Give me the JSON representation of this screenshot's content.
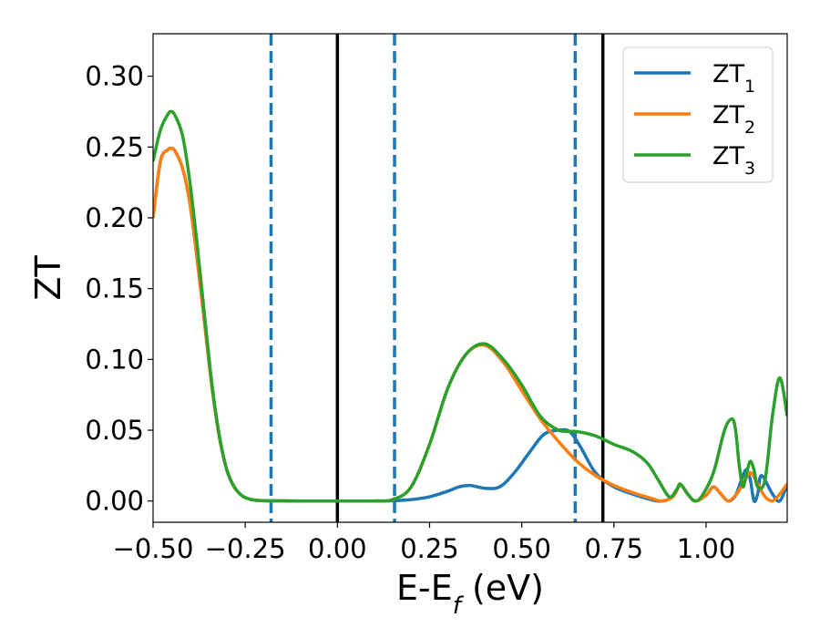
{
  "chart_data": {
    "type": "line",
    "xlabel": {
      "main": "E-E",
      "sub": "f",
      "unit": " (eV)"
    },
    "ylabel": "ZT",
    "xlim": [
      -0.5,
      1.22
    ],
    "ylim": [
      -0.015,
      0.33
    ],
    "xticks": [
      -0.5,
      -0.25,
      0.0,
      0.25,
      0.5,
      0.75,
      1.0
    ],
    "xtick_labels": [
      "−0.50",
      "−0.25",
      "0.00",
      "0.25",
      "0.50",
      "0.75",
      "1.00"
    ],
    "yticks": [
      0.0,
      0.05,
      0.1,
      0.15,
      0.2,
      0.25,
      0.3
    ],
    "ytick_labels": [
      "0.00",
      "0.05",
      "0.10",
      "0.15",
      "0.20",
      "0.25",
      "0.30"
    ],
    "vlines": [
      {
        "x": -0.18,
        "style": "dashed",
        "color": "#1f77b4"
      },
      {
        "x": 0.0,
        "style": "solid",
        "color": "#000000"
      },
      {
        "x": 0.155,
        "style": "dashed",
        "color": "#1f77b4"
      },
      {
        "x": 0.645,
        "style": "dashed",
        "color": "#1f77b4"
      },
      {
        "x": 0.72,
        "style": "solid",
        "color": "#000000"
      }
    ],
    "legend_position": "top-right",
    "series": [
      {
        "name": "ZT",
        "name_sub": "1",
        "color": "#1f77b4",
        "x": [
          -0.5,
          -0.48,
          -0.46,
          -0.45,
          -0.44,
          -0.42,
          -0.4,
          -0.38,
          -0.36,
          -0.34,
          -0.32,
          -0.3,
          -0.28,
          -0.26,
          -0.24,
          -0.22,
          -0.2,
          -0.15,
          -0.1,
          0.0,
          0.1,
          0.15,
          0.2,
          0.25,
          0.3,
          0.33,
          0.36,
          0.4,
          0.44,
          0.48,
          0.52,
          0.56,
          0.6,
          0.63,
          0.66,
          0.7,
          0.75,
          0.8,
          0.85,
          0.88,
          0.91,
          0.93,
          0.95,
          0.97,
          1.0,
          1.02,
          1.04,
          1.06,
          1.08,
          1.1,
          1.11,
          1.12,
          1.13,
          1.14,
          1.15,
          1.18,
          1.2,
          1.22
        ],
        "y": [
          0.2,
          0.24,
          0.248,
          0.249,
          0.247,
          0.235,
          0.21,
          0.17,
          0.125,
          0.08,
          0.045,
          0.022,
          0.01,
          0.004,
          0.0015,
          0.0005,
          0.0002,
          0.0001,
          0.0,
          0.0,
          0.0,
          0.0002,
          0.001,
          0.003,
          0.007,
          0.01,
          0.011,
          0.009,
          0.01,
          0.02,
          0.034,
          0.047,
          0.05,
          0.049,
          0.038,
          0.02,
          0.01,
          0.005,
          0.001,
          0.0,
          0.003,
          0.011,
          0.005,
          0.0,
          0.004,
          0.01,
          0.005,
          0.0,
          0.004,
          0.018,
          0.022,
          0.015,
          0.0,
          0.005,
          0.018,
          0.005,
          0.0,
          0.012
        ]
      },
      {
        "name": "ZT",
        "name_sub": "2",
        "color": "#ff7f0e",
        "x": [
          -0.5,
          -0.48,
          -0.46,
          -0.45,
          -0.44,
          -0.42,
          -0.4,
          -0.38,
          -0.36,
          -0.34,
          -0.32,
          -0.3,
          -0.28,
          -0.26,
          -0.24,
          -0.22,
          -0.2,
          -0.15,
          -0.1,
          0.0,
          0.1,
          0.15,
          0.2,
          0.25,
          0.3,
          0.35,
          0.4,
          0.45,
          0.5,
          0.55,
          0.6,
          0.65,
          0.7,
          0.75,
          0.8,
          0.85,
          0.88,
          0.91,
          0.93,
          0.95,
          0.97,
          1.0,
          1.02,
          1.04,
          1.06,
          1.08,
          1.1,
          1.12,
          1.14,
          1.16,
          1.18,
          1.2,
          1.22
        ],
        "y": [
          0.2,
          0.24,
          0.248,
          0.249,
          0.247,
          0.235,
          0.21,
          0.17,
          0.125,
          0.08,
          0.045,
          0.022,
          0.01,
          0.004,
          0.0015,
          0.0005,
          0.0002,
          0.0001,
          0.0,
          0.0,
          0.0,
          0.001,
          0.01,
          0.04,
          0.08,
          0.104,
          0.11,
          0.098,
          0.078,
          0.058,
          0.042,
          0.028,
          0.018,
          0.011,
          0.006,
          0.002,
          0.0,
          0.003,
          0.011,
          0.005,
          0.0,
          0.004,
          0.01,
          0.005,
          0.0,
          0.004,
          0.012,
          0.02,
          0.012,
          0.003,
          0.0,
          0.005,
          0.012
        ]
      },
      {
        "name": "ZT",
        "name_sub": "3",
        "color": "#2ca02c",
        "x": [
          -0.5,
          -0.48,
          -0.46,
          -0.45,
          -0.44,
          -0.42,
          -0.4,
          -0.38,
          -0.36,
          -0.34,
          -0.32,
          -0.3,
          -0.28,
          -0.26,
          -0.24,
          -0.22,
          -0.2,
          -0.15,
          -0.1,
          0.0,
          0.1,
          0.15,
          0.2,
          0.25,
          0.3,
          0.35,
          0.4,
          0.45,
          0.5,
          0.55,
          0.6,
          0.65,
          0.7,
          0.75,
          0.8,
          0.84,
          0.87,
          0.9,
          0.92,
          0.93,
          0.95,
          0.97,
          0.99,
          1.02,
          1.05,
          1.07,
          1.08,
          1.09,
          1.1,
          1.11,
          1.12,
          1.13,
          1.14,
          1.16,
          1.18,
          1.2,
          1.22
        ],
        "y": [
          0.24,
          0.262,
          0.273,
          0.275,
          0.272,
          0.258,
          0.225,
          0.18,
          0.13,
          0.082,
          0.046,
          0.022,
          0.01,
          0.004,
          0.0015,
          0.0005,
          0.0002,
          0.0001,
          0.0,
          0.0,
          0.0,
          0.001,
          0.01,
          0.04,
          0.08,
          0.104,
          0.111,
          0.1,
          0.082,
          0.06,
          0.05,
          0.049,
          0.046,
          0.04,
          0.035,
          0.027,
          0.015,
          0.003,
          0.008,
          0.012,
          0.005,
          0.0,
          0.004,
          0.02,
          0.05,
          0.058,
          0.05,
          0.025,
          0.01,
          0.02,
          0.028,
          0.022,
          0.01,
          0.015,
          0.06,
          0.087,
          0.06
        ]
      }
    ]
  }
}
